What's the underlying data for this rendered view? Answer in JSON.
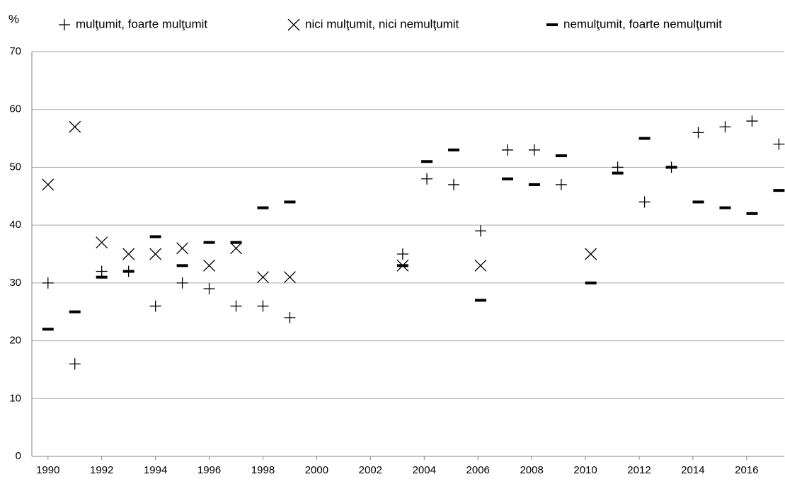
{
  "chart_data": {
    "type": "scatter",
    "y_label": "%",
    "x": [
      1990,
      1991,
      1992,
      1993,
      1994,
      1995,
      1996,
      1997,
      1998,
      1999,
      2003.2,
      2004.1,
      2005.1,
      2006.1,
      2007.1,
      2008.1,
      2009.1,
      2010.2,
      2011.2,
      2012.2,
      2013.2,
      2014.2,
      2015.2,
      2016.2,
      2017.2
    ],
    "series": [
      {
        "name": "mulţumit, foarte mulţumit",
        "color": "#000000",
        "marker": "plus",
        "values": [
          30,
          16,
          32,
          32,
          26,
          30,
          29,
          26,
          26,
          24,
          35,
          48,
          47,
          39,
          53,
          53,
          47,
          null,
          50,
          44,
          50,
          56,
          57,
          58,
          54
        ]
      },
      {
        "name": "nici mulţumit, nici nemulţumit",
        "color": "#000000",
        "marker": "cross",
        "values": [
          47,
          57,
          37,
          35,
          35,
          36,
          33,
          36,
          31,
          31,
          33,
          null,
          null,
          33,
          null,
          null,
          null,
          35,
          null,
          null,
          null,
          null,
          null,
          null,
          null
        ]
      },
      {
        "name": "nemulţumit, foarte nemulţumit",
        "color": "#000000",
        "marker": "dash",
        "values": [
          22,
          25,
          31,
          32,
          38,
          33,
          37,
          37,
          43,
          44,
          33,
          51,
          53,
          27,
          48,
          47,
          52,
          30,
          49,
          55,
          50,
          44,
          43,
          42,
          46
        ]
      }
    ],
    "xlim": [
      1989.4,
      2017.4
    ],
    "xticks": [
      1990,
      1992,
      1994,
      1996,
      1998,
      2000,
      2002,
      2004,
      2006,
      2008,
      2010,
      2012,
      2014,
      2016
    ],
    "ylim": [
      0,
      70
    ],
    "yticks": [
      0,
      10,
      20,
      30,
      40,
      50,
      60,
      70
    ],
    "grid": true,
    "legend": "top"
  }
}
